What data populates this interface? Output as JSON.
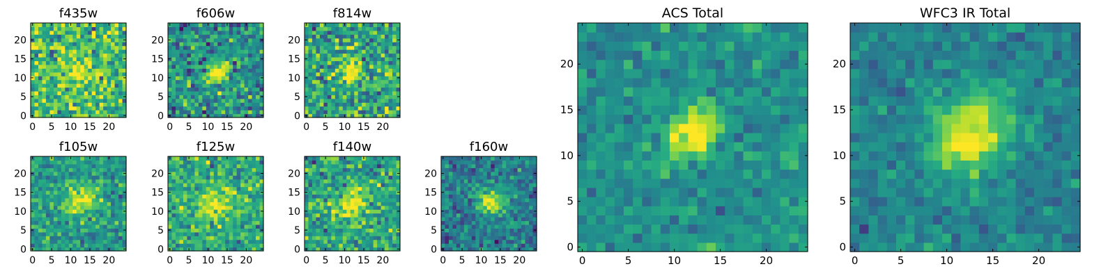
{
  "figure": {
    "background": "#ffffff",
    "colormap": "viridis"
  },
  "chart_data": [
    {
      "type": "heatmap",
      "title": "f435w",
      "xticks": [
        0,
        5,
        10,
        15,
        20
      ],
      "yticks": [
        0,
        5,
        10,
        15,
        20
      ],
      "xlim": [
        -0.5,
        24.5
      ],
      "ylim": [
        -0.5,
        24.5
      ],
      "grid_size": [
        25,
        25
      ],
      "background_level": 0.7,
      "noise": 0.5,
      "source": {
        "x": 12,
        "y": 12,
        "peak": 0.35,
        "sigma_x": 2.5,
        "sigma_y": 2.0,
        "angle": 0
      },
      "seed": 11
    },
    {
      "type": "heatmap",
      "title": "f606w",
      "xticks": [
        0,
        5,
        10,
        15,
        20
      ],
      "yticks": [
        0,
        5,
        10,
        15,
        20
      ],
      "xlim": [
        -0.5,
        24.5
      ],
      "ylim": [
        -0.5,
        24.5
      ],
      "grid_size": [
        25,
        25
      ],
      "background_level": 0.5,
      "noise": 0.45,
      "source": {
        "x": 12.5,
        "y": 11.5,
        "peak": 0.6,
        "sigma_x": 2.6,
        "sigma_y": 1.5,
        "angle": 40
      },
      "seed": 23
    },
    {
      "type": "heatmap",
      "title": "f814w",
      "xticks": [
        0,
        5,
        10,
        15,
        20
      ],
      "yticks": [
        0,
        5,
        10,
        15,
        20
      ],
      "xlim": [
        -0.5,
        24.5
      ],
      "ylim": [
        -0.5,
        24.5
      ],
      "grid_size": [
        25,
        25
      ],
      "background_level": 0.6,
      "noise": 0.5,
      "source": {
        "x": 12,
        "y": 12,
        "peak": 0.45,
        "sigma_x": 2.5,
        "sigma_y": 1.4,
        "angle": 60
      },
      "seed": 37
    },
    {
      "type": "heatmap",
      "title": "f105w",
      "xticks": [
        0,
        5,
        10,
        15,
        20
      ],
      "yticks": [
        0,
        5,
        10,
        15,
        20
      ],
      "xlim": [
        -0.5,
        24.5
      ],
      "ylim": [
        -0.5,
        24.5
      ],
      "grid_size": [
        25,
        25
      ],
      "background_level": 0.55,
      "noise": 0.35,
      "source": {
        "x": 13,
        "y": 13,
        "peak": 0.5,
        "sigma_x": 3.0,
        "sigma_y": 2.2,
        "angle": 40
      },
      "seed": 41
    },
    {
      "type": "heatmap",
      "title": "f125w",
      "xticks": [
        0,
        5,
        10,
        15,
        20
      ],
      "yticks": [
        0,
        5,
        10,
        15,
        20
      ],
      "xlim": [
        -0.5,
        24.5
      ],
      "ylim": [
        -0.5,
        24.5
      ],
      "grid_size": [
        25,
        25
      ],
      "background_level": 0.62,
      "noise": 0.4,
      "source": {
        "x": 12,
        "y": 12,
        "peak": 0.35,
        "sigma_x": 3.5,
        "sigma_y": 2.5,
        "angle": 50
      },
      "seed": 53
    },
    {
      "type": "heatmap",
      "title": "f140w",
      "xticks": [
        0,
        5,
        10,
        15,
        20
      ],
      "yticks": [
        0,
        5,
        10,
        15,
        20
      ],
      "xlim": [
        -0.5,
        24.5
      ],
      "ylim": [
        -0.5,
        24.5
      ],
      "grid_size": [
        25,
        25
      ],
      "background_level": 0.58,
      "noise": 0.4,
      "source": {
        "x": 12,
        "y": 12,
        "peak": 0.45,
        "sigma_x": 3.2,
        "sigma_y": 1.8,
        "angle": 60
      },
      "seed": 67
    },
    {
      "type": "heatmap",
      "title": "f160w",
      "xticks": [
        0,
        5,
        10,
        15,
        20
      ],
      "yticks": [
        0,
        5,
        10,
        15,
        20
      ],
      "xlim": [
        -0.5,
        24.5
      ],
      "ylim": [
        -0.5,
        24.5
      ],
      "grid_size": [
        25,
        25
      ],
      "background_level": 0.42,
      "noise": 0.35,
      "source": {
        "x": 12.5,
        "y": 12.5,
        "peak": 0.6,
        "sigma_x": 2.4,
        "sigma_y": 2.4,
        "angle": 0
      },
      "seed": 79
    },
    {
      "type": "heatmap",
      "title": "ACS Total",
      "xticks": [
        0,
        5,
        10,
        15,
        20
      ],
      "yticks": [
        0,
        5,
        10,
        15,
        20
      ],
      "xlim": [
        -0.5,
        24.5
      ],
      "ylim": [
        -0.5,
        24.5
      ],
      "grid_size": [
        25,
        25
      ],
      "background_level": 0.5,
      "noise": 0.25,
      "source": {
        "x": 12,
        "y": 12.5,
        "peak": 0.55,
        "sigma_x": 2.4,
        "sigma_y": 1.6,
        "angle": 45
      },
      "seed": 97
    },
    {
      "type": "heatmap",
      "title": "WFC3 IR Total",
      "xticks": [
        0,
        5,
        10,
        15,
        20
      ],
      "yticks": [
        0,
        5,
        10,
        15,
        20
      ],
      "xlim": [
        -0.5,
        24.5
      ],
      "ylim": [
        -0.5,
        24.5
      ],
      "grid_size": [
        25,
        25
      ],
      "background_level": 0.45,
      "noise": 0.22,
      "source": {
        "x": 12.5,
        "y": 12.5,
        "peak": 0.6,
        "sigma_x": 3.2,
        "sigma_y": 2.6,
        "angle": 45
      },
      "seed": 113
    }
  ]
}
